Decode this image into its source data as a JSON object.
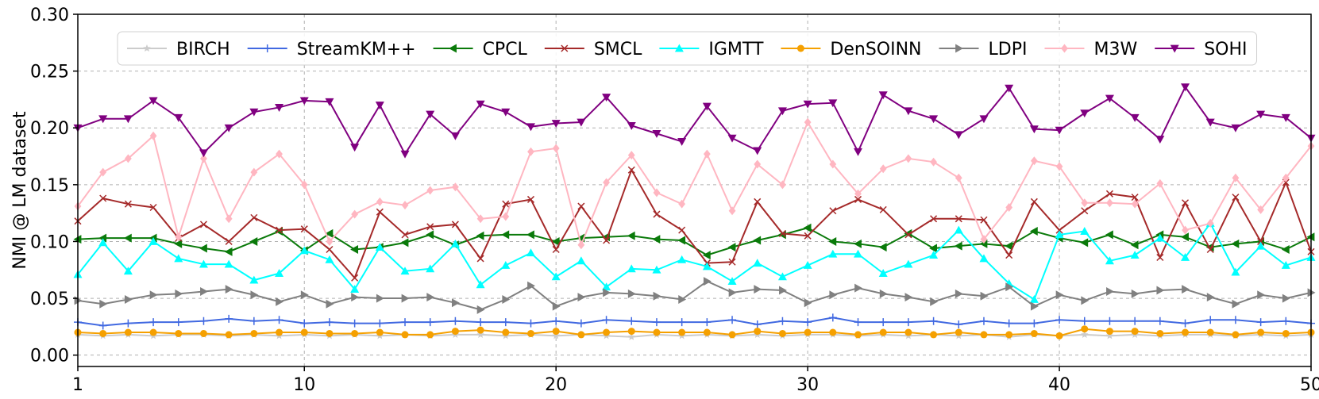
{
  "chart_data": {
    "type": "line",
    "title": "",
    "xlabel": "",
    "ylabel": "NMI @ LM dataset",
    "xlim": [
      1,
      50
    ],
    "ylim": [
      -0.01,
      0.3
    ],
    "xticks": [
      1,
      10,
      20,
      30,
      40,
      50
    ],
    "yticks": [
      0.0,
      0.05,
      0.1,
      0.15,
      0.2,
      0.25,
      0.3
    ],
    "ytick_labels": [
      "0.00",
      "0.05",
      "0.10",
      "0.15",
      "0.20",
      "0.25",
      "0.30"
    ],
    "grid": true,
    "legend_position": "top",
    "x": [
      1,
      2,
      3,
      4,
      5,
      6,
      7,
      8,
      9,
      10,
      11,
      12,
      13,
      14,
      15,
      16,
      17,
      18,
      19,
      20,
      21,
      22,
      23,
      24,
      25,
      26,
      27,
      28,
      29,
      30,
      31,
      32,
      33,
      34,
      35,
      36,
      37,
      38,
      39,
      40,
      41,
      42,
      43,
      44,
      45,
      46,
      47,
      48,
      49,
      50
    ],
    "series": [
      {
        "name": "BIRCH",
        "color": "#cccccc",
        "marker": "star",
        "values": [
          0.018,
          0.017,
          0.018,
          0.017,
          0.018,
          0.018,
          0.017,
          0.018,
          0.017,
          0.018,
          0.017,
          0.018,
          0.017,
          0.018,
          0.017,
          0.018,
          0.018,
          0.017,
          0.018,
          0.017,
          0.018,
          0.017,
          0.016,
          0.018,
          0.017,
          0.018,
          0.017,
          0.018,
          0.017,
          0.018,
          0.018,
          0.017,
          0.018,
          0.017,
          0.018,
          0.017,
          0.018,
          0.016,
          0.018,
          0.017,
          0.018,
          0.017,
          0.018,
          0.017,
          0.018,
          0.018,
          0.017,
          0.018,
          0.017,
          0.018
        ]
      },
      {
        "name": "StreamKM++",
        "color": "#4169e1",
        "marker": "plus",
        "values": [
          0.029,
          0.026,
          0.028,
          0.029,
          0.029,
          0.03,
          0.032,
          0.03,
          0.031,
          0.028,
          0.029,
          0.028,
          0.028,
          0.029,
          0.029,
          0.03,
          0.029,
          0.029,
          0.028,
          0.03,
          0.028,
          0.031,
          0.03,
          0.029,
          0.029,
          0.029,
          0.031,
          0.027,
          0.03,
          0.029,
          0.033,
          0.029,
          0.029,
          0.029,
          0.03,
          0.027,
          0.03,
          0.028,
          0.028,
          0.031,
          0.03,
          0.03,
          0.03,
          0.03,
          0.028,
          0.031,
          0.031,
          0.029,
          0.03,
          0.028
        ]
      },
      {
        "name": "CPCL",
        "color": "#0a7a0a",
        "marker": "triangle-left",
        "values": [
          0.102,
          0.103,
          0.103,
          0.103,
          0.098,
          0.094,
          0.091,
          0.1,
          0.109,
          0.092,
          0.107,
          0.093,
          0.095,
          0.099,
          0.106,
          0.097,
          0.105,
          0.106,
          0.106,
          0.1,
          0.103,
          0.104,
          0.105,
          0.102,
          0.101,
          0.088,
          0.095,
          0.101,
          0.106,
          0.112,
          0.1,
          0.098,
          0.095,
          0.107,
          0.094,
          0.096,
          0.098,
          0.096,
          0.109,
          0.103,
          0.099,
          0.106,
          0.097,
          0.106,
          0.104,
          0.095,
          0.098,
          0.1,
          0.093,
          0.104
        ]
      },
      {
        "name": "SMCL",
        "color": "#a52a2a",
        "marker": "x",
        "values": [
          0.118,
          0.138,
          0.133,
          0.13,
          0.103,
          0.115,
          0.1,
          0.121,
          0.11,
          0.111,
          0.093,
          0.068,
          0.126,
          0.106,
          0.113,
          0.115,
          0.085,
          0.133,
          0.137,
          0.093,
          0.131,
          0.101,
          0.163,
          0.124,
          0.11,
          0.081,
          0.082,
          0.135,
          0.107,
          0.105,
          0.127,
          0.137,
          0.128,
          0.106,
          0.12,
          0.12,
          0.119,
          0.088,
          0.135,
          0.11,
          0.127,
          0.142,
          0.139,
          0.086,
          0.134,
          0.093,
          0.139,
          0.1,
          0.152,
          0.091
        ]
      },
      {
        "name": "IGMTT",
        "color": "#00ffff",
        "marker": "triangle-up",
        "values": [
          0.071,
          0.099,
          0.074,
          0.1,
          0.085,
          0.08,
          0.08,
          0.066,
          0.072,
          0.092,
          0.084,
          0.058,
          0.095,
          0.074,
          0.076,
          0.098,
          0.062,
          0.079,
          0.09,
          0.069,
          0.083,
          0.06,
          0.076,
          0.075,
          0.084,
          0.078,
          0.065,
          0.081,
          0.069,
          0.079,
          0.089,
          0.089,
          0.072,
          0.08,
          0.088,
          0.11,
          0.085,
          0.063,
          0.049,
          0.106,
          0.109,
          0.083,
          0.088,
          0.103,
          0.086,
          0.116,
          0.073,
          0.096,
          0.079,
          0.086
        ]
      },
      {
        "name": "DenSOINN",
        "color": "#f5a000",
        "marker": "circle",
        "values": [
          0.02,
          0.019,
          0.02,
          0.02,
          0.019,
          0.019,
          0.018,
          0.019,
          0.02,
          0.02,
          0.019,
          0.019,
          0.02,
          0.018,
          0.018,
          0.021,
          0.022,
          0.02,
          0.019,
          0.021,
          0.018,
          0.02,
          0.021,
          0.02,
          0.02,
          0.02,
          0.018,
          0.021,
          0.019,
          0.02,
          0.02,
          0.018,
          0.02,
          0.02,
          0.018,
          0.02,
          0.018,
          0.018,
          0.019,
          0.017,
          0.023,
          0.021,
          0.021,
          0.019,
          0.02,
          0.02,
          0.018,
          0.02,
          0.019,
          0.02
        ]
      },
      {
        "name": "LDPI",
        "color": "#808080",
        "marker": "triangle-right",
        "values": [
          0.048,
          0.045,
          0.049,
          0.053,
          0.054,
          0.056,
          0.058,
          0.053,
          0.047,
          0.053,
          0.045,
          0.051,
          0.05,
          0.05,
          0.051,
          0.046,
          0.04,
          0.049,
          0.061,
          0.043,
          0.051,
          0.055,
          0.054,
          0.052,
          0.049,
          0.065,
          0.055,
          0.058,
          0.057,
          0.046,
          0.053,
          0.059,
          0.054,
          0.051,
          0.047,
          0.054,
          0.052,
          0.06,
          0.043,
          0.053,
          0.048,
          0.056,
          0.054,
          0.057,
          0.058,
          0.051,
          0.045,
          0.053,
          0.05,
          0.055
        ]
      },
      {
        "name": "M3W",
        "color": "#ffb6c1",
        "marker": "diamond",
        "values": [
          0.131,
          0.161,
          0.173,
          0.193,
          0.104,
          0.173,
          0.12,
          0.161,
          0.177,
          0.15,
          0.1,
          0.124,
          0.135,
          0.132,
          0.145,
          0.148,
          0.12,
          0.122,
          0.179,
          0.182,
          0.097,
          0.152,
          0.176,
          0.143,
          0.133,
          0.177,
          0.127,
          0.168,
          0.15,
          0.205,
          0.168,
          0.142,
          0.164,
          0.173,
          0.17,
          0.156,
          0.102,
          0.13,
          0.171,
          0.166,
          0.134,
          0.134,
          0.133,
          0.151,
          0.11,
          0.116,
          0.156,
          0.128,
          0.156,
          0.184
        ]
      },
      {
        "name": "SOHI",
        "color": "#800080",
        "marker": "triangle-down",
        "values": [
          0.2,
          0.208,
          0.208,
          0.224,
          0.209,
          0.178,
          0.2,
          0.214,
          0.218,
          0.224,
          0.223,
          0.183,
          0.22,
          0.177,
          0.212,
          0.193,
          0.221,
          0.214,
          0.201,
          0.204,
          0.205,
          0.227,
          0.202,
          0.195,
          0.188,
          0.219,
          0.191,
          0.18,
          0.215,
          0.221,
          0.222,
          0.179,
          0.229,
          0.215,
          0.208,
          0.194,
          0.208,
          0.235,
          0.199,
          0.198,
          0.213,
          0.226,
          0.209,
          0.19,
          0.236,
          0.205,
          0.2,
          0.212,
          0.209,
          0.191
        ]
      }
    ]
  }
}
